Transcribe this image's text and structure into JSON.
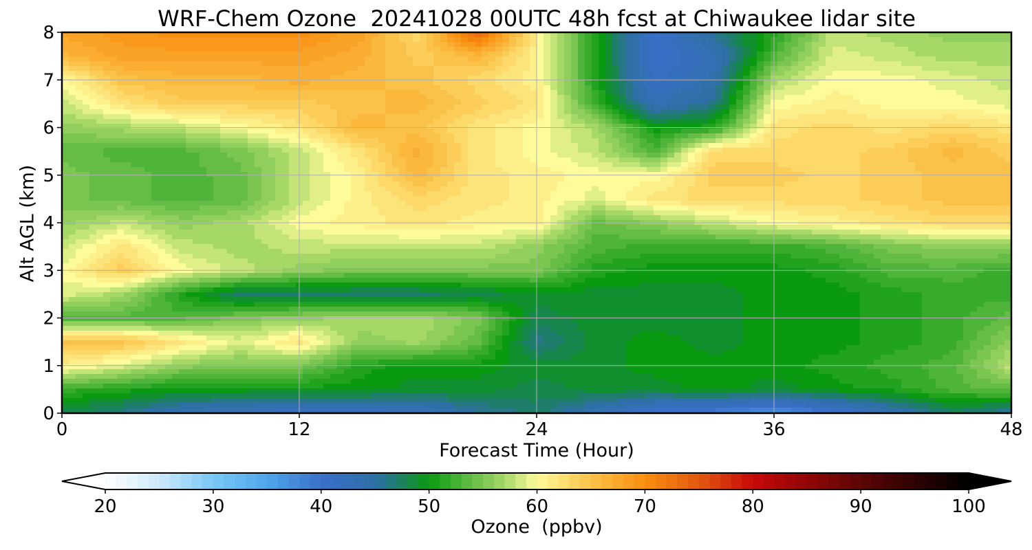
{
  "chart_data": {
    "type": "heatmap",
    "title": "WRF-Chem Ozone  20241028 00UTC 48h fcst at Chiwaukee lidar site",
    "xlabel": "Forecast Time (Hour)",
    "ylabel": "Alt AGL (km)",
    "xlim": [
      0,
      48
    ],
    "ylim": [
      0,
      8
    ],
    "xticks": [
      "0",
      "12",
      "24",
      "36",
      "48"
    ],
    "yticks": [
      "0",
      "1",
      "2",
      "3",
      "4",
      "5",
      "6",
      "7",
      "8"
    ],
    "grid": true,
    "x": [
      0,
      3,
      6,
      9,
      12,
      15,
      18,
      21,
      24,
      27,
      30,
      33,
      36,
      39,
      42,
      45,
      48
    ],
    "y": [
      0,
      0.5,
      1,
      1.5,
      2,
      2.5,
      3,
      3.5,
      4,
      4.5,
      5,
      5.5,
      6,
      6.5,
      7,
      7.5,
      8
    ],
    "z": [
      [
        48,
        46,
        43,
        42,
        41,
        41,
        42,
        45,
        47,
        43,
        39,
        38,
        36,
        39,
        43,
        47,
        45
      ],
      [
        52,
        51,
        50,
        50,
        50,
        50,
        49,
        49,
        48,
        49,
        49,
        50,
        49,
        50,
        51,
        53,
        54
      ],
      [
        61,
        59,
        56,
        55,
        55,
        51,
        50,
        50,
        49,
        49,
        50,
        50,
        50,
        51,
        52,
        53,
        58
      ],
      [
        65,
        65,
        62,
        59,
        62,
        56,
        57,
        54,
        46,
        49,
        50,
        49,
        50,
        50,
        51,
        52,
        56
      ],
      [
        53,
        53,
        53,
        55,
        56,
        57,
        57,
        55,
        48,
        49,
        49,
        49,
        50,
        50,
        51,
        52,
        54
      ],
      [
        59,
        57,
        51,
        47,
        47,
        47,
        47,
        48,
        49,
        49,
        49,
        49,
        50,
        50,
        51,
        52,
        52
      ],
      [
        60,
        64,
        60,
        58,
        56,
        55,
        55,
        55,
        55,
        51,
        50,
        50,
        50,
        51,
        53,
        53,
        52
      ],
      [
        58,
        62,
        58,
        57,
        58,
        58,
        58,
        58,
        56,
        53,
        52,
        52,
        52,
        53,
        55,
        56,
        56
      ],
      [
        56,
        58,
        56,
        57,
        60,
        61,
        62,
        61,
        61,
        54,
        56,
        58,
        60,
        61,
        62,
        63,
        63
      ],
      [
        55,
        54,
        53,
        54,
        58,
        61,
        63,
        62,
        61,
        59,
        62,
        63,
        63,
        63,
        64,
        65,
        65
      ],
      [
        55,
        54,
        53,
        54,
        58,
        61,
        66,
        62,
        61,
        60,
        60,
        64,
        64,
        63,
        64,
        65,
        65
      ],
      [
        54,
        53,
        53,
        55,
        58,
        62,
        67,
        62,
        60,
        58,
        53,
        63,
        63,
        63,
        64,
        66,
        64
      ],
      [
        56,
        57,
        58,
        60,
        62,
        66,
        65,
        62,
        60,
        57,
        50,
        51,
        62,
        63,
        62,
        63,
        62
      ],
      [
        58,
        62,
        64,
        64,
        64,
        65,
        66,
        64,
        62,
        52,
        43,
        46,
        60,
        61,
        60,
        60,
        59
      ],
      [
        60,
        65,
        66,
        66,
        67,
        66,
        65,
        63,
        61,
        51,
        41,
        44,
        57,
        60,
        60,
        59,
        58
      ],
      [
        66,
        68,
        68,
        68,
        68,
        67,
        64,
        66,
        61,
        51,
        40,
        43,
        53,
        59,
        58,
        57,
        57
      ],
      [
        68,
        69,
        70,
        70,
        70,
        68,
        63,
        74,
        61,
        51,
        40,
        46,
        51,
        58,
        57,
        56,
        56
      ]
    ],
    "colorbar": {
      "label": "Ozone  (ppbv)",
      "ticks": [
        "20",
        "30",
        "40",
        "50",
        "60",
        "70",
        "80",
        "90",
        "100"
      ],
      "range": [
        20,
        100
      ],
      "extend": "both",
      "colors": {
        "20": "#ffffff",
        "25": "#cde9fb",
        "30": "#78c7f5",
        "35": "#4fa6ea",
        "40": "#3a6fc9",
        "45": "#2e70a6",
        "47": "#1f7d6c",
        "50": "#0a9a12",
        "53": "#4fb43a",
        "57": "#a6d868",
        "60": "#fefb9a",
        "65": "#fbc249",
        "70": "#f88e0e",
        "75": "#e35910",
        "80": "#c70808",
        "90": "#5c0505",
        "100": "#000000"
      }
    }
  }
}
